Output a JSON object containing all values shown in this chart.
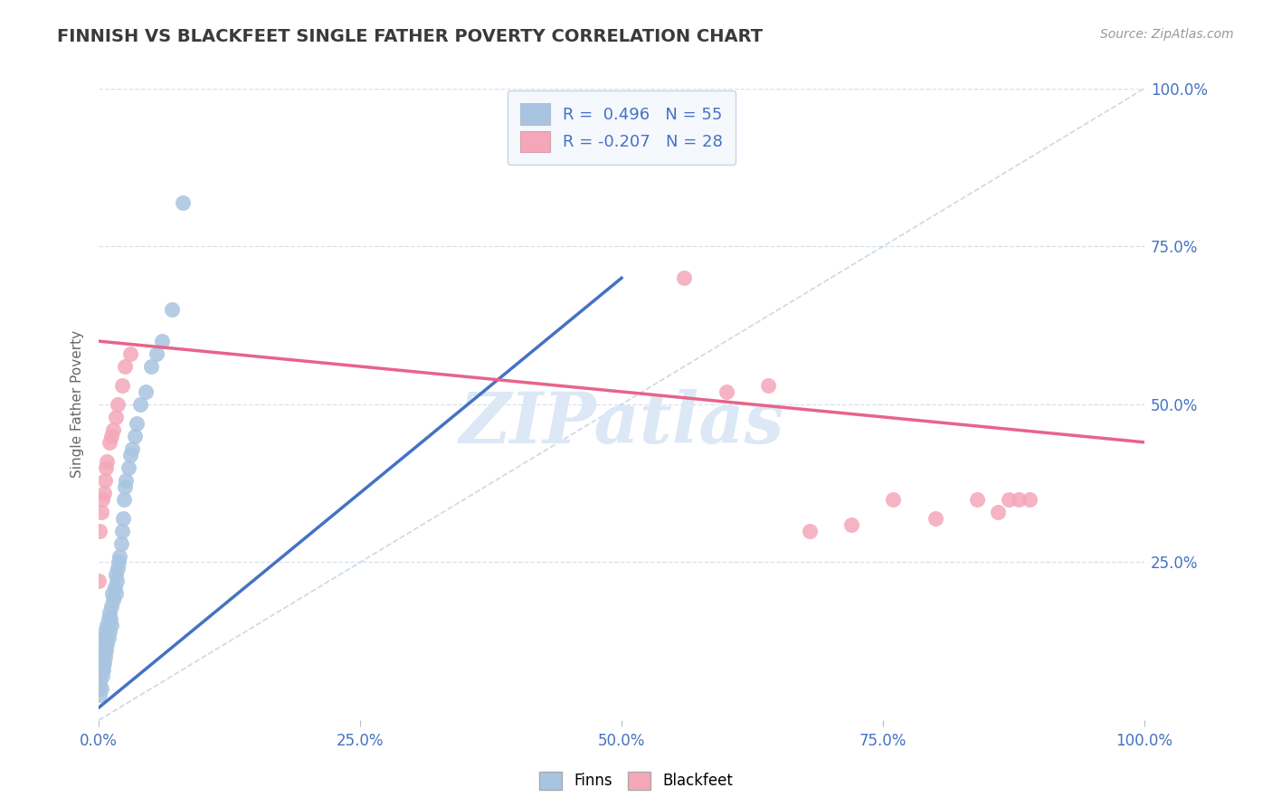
{
  "title": "FINNISH VS BLACKFEET SINGLE FATHER POVERTY CORRELATION CHART",
  "source_text": "Source: ZipAtlas.com",
  "ylabel": "Single Father Poverty",
  "finns_R": 0.496,
  "finns_N": 55,
  "blackfeet_R": -0.207,
  "blackfeet_N": 28,
  "finns_color": "#a8c4e0",
  "blackfeet_color": "#f4a7b9",
  "finns_line_color": "#4472c4",
  "blackfeet_line_color": "#e8638a",
  "diagonal_color": "#c0cfe0",
  "background_color": "#ffffff",
  "grid_color": "#d8e0ec",
  "title_color": "#3a3a3a",
  "tick_label_color": "#4472c4",
  "watermark_color": "#dce8f5",
  "finns_scatter_x": [
    0.0,
    0.001,
    0.001,
    0.002,
    0.002,
    0.003,
    0.003,
    0.003,
    0.003,
    0.004,
    0.004,
    0.004,
    0.005,
    0.005,
    0.006,
    0.006,
    0.006,
    0.007,
    0.007,
    0.008,
    0.008,
    0.009,
    0.009,
    0.01,
    0.01,
    0.011,
    0.012,
    0.012,
    0.013,
    0.014,
    0.015,
    0.016,
    0.016,
    0.017,
    0.018,
    0.019,
    0.02,
    0.021,
    0.022,
    0.023,
    0.024,
    0.025,
    0.026,
    0.028,
    0.03,
    0.032,
    0.034,
    0.036,
    0.04,
    0.045,
    0.05,
    0.055,
    0.06,
    0.07,
    0.08
  ],
  "finns_scatter_y": [
    0.05,
    0.04,
    0.06,
    0.05,
    0.08,
    0.07,
    0.09,
    0.1,
    0.12,
    0.08,
    0.1,
    0.13,
    0.09,
    0.11,
    0.1,
    0.12,
    0.14,
    0.11,
    0.13,
    0.12,
    0.15,
    0.13,
    0.16,
    0.14,
    0.17,
    0.16,
    0.15,
    0.18,
    0.2,
    0.19,
    0.21,
    0.2,
    0.23,
    0.22,
    0.24,
    0.25,
    0.26,
    0.28,
    0.3,
    0.32,
    0.35,
    0.37,
    0.38,
    0.4,
    0.42,
    0.43,
    0.45,
    0.47,
    0.5,
    0.52,
    0.56,
    0.58,
    0.6,
    0.65,
    0.82
  ],
  "blackfeet_scatter_x": [
    0.0,
    0.001,
    0.002,
    0.003,
    0.005,
    0.006,
    0.007,
    0.008,
    0.01,
    0.012,
    0.014,
    0.016,
    0.018,
    0.022,
    0.025,
    0.03,
    0.56,
    0.6,
    0.64,
    0.68,
    0.72,
    0.76,
    0.8,
    0.84,
    0.86,
    0.87,
    0.88,
    0.89
  ],
  "blackfeet_scatter_y": [
    0.22,
    0.3,
    0.33,
    0.35,
    0.36,
    0.38,
    0.4,
    0.41,
    0.44,
    0.45,
    0.46,
    0.48,
    0.5,
    0.53,
    0.56,
    0.58,
    0.7,
    0.52,
    0.53,
    0.3,
    0.31,
    0.35,
    0.32,
    0.35,
    0.33,
    0.35,
    0.35,
    0.35
  ],
  "xlim": [
    0.0,
    1.0
  ],
  "ylim": [
    0.0,
    1.0
  ],
  "xtick_positions": [
    0.0,
    0.25,
    0.5,
    0.75,
    1.0
  ],
  "xtick_labels": [
    "0.0%",
    "25.0%",
    "50.0%",
    "75.0%",
    "100.0%"
  ],
  "ytick_positions": [
    0.25,
    0.5,
    0.75,
    1.0
  ],
  "ytick_labels": [
    "25.0%",
    "50.0%",
    "75.0%",
    "100.0%"
  ],
  "legend_box_color": "#f5f8fd",
  "legend_border_color": "#c8d4e8",
  "finns_line_x": [
    0.0,
    0.5
  ],
  "finns_line_y": [
    0.02,
    0.7
  ],
  "blackfeet_line_x": [
    0.0,
    1.0
  ],
  "blackfeet_line_y": [
    0.6,
    0.44
  ]
}
